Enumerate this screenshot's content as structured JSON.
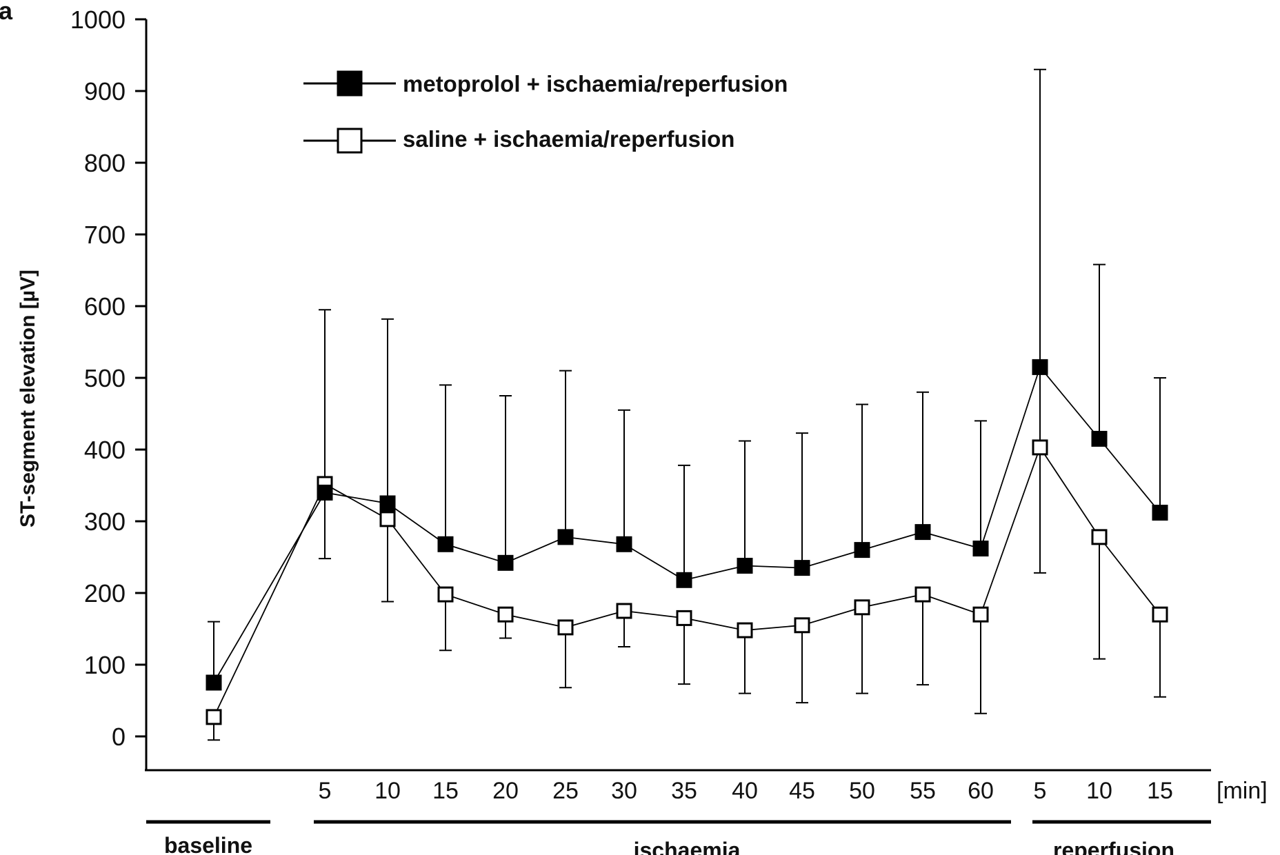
{
  "panel_label": "a",
  "chart_data": {
    "type": "line",
    "ylabel": "ST-segment elevation [µV]",
    "ylim": [
      0,
      1000
    ],
    "yticks": [
      0,
      100,
      200,
      300,
      400,
      500,
      600,
      700,
      800,
      900,
      1000
    ],
    "x_unit": "[min]",
    "x_tick_labels": [
      "5",
      "10",
      "15",
      "20",
      "25",
      "30",
      "35",
      "40",
      "45",
      "50",
      "55",
      "60",
      "5",
      "10",
      "15"
    ],
    "groups": [
      {
        "label": "baseline"
      },
      {
        "label": "ischaemia"
      },
      {
        "label": "reperfusion"
      }
    ],
    "categories": [
      "baseline",
      "ischaemia 5",
      "ischaemia 10",
      "ischaemia 15",
      "ischaemia 20",
      "ischaemia 25",
      "ischaemia 30",
      "ischaemia 35",
      "ischaemia 40",
      "ischaemia 45",
      "ischaemia 50",
      "ischaemia 55",
      "ischaemia 60",
      "reperfusion 5",
      "reperfusion 10",
      "reperfusion 15"
    ],
    "legend_position": "top-left",
    "series": [
      {
        "name": "metoprolol + ischaemia/reperfusion",
        "marker": "filled-square",
        "color": "#000000",
        "values": [
          75,
          340,
          325,
          268,
          242,
          278,
          268,
          218,
          238,
          235,
          260,
          285,
          262,
          515,
          415,
          312
        ],
        "error_upper": [
          160,
          595,
          582,
          490,
          475,
          510,
          455,
          378,
          412,
          423,
          463,
          480,
          440,
          930,
          658,
          500
        ],
        "error_lower": [
          null,
          248,
          188,
          null,
          null,
          null,
          null,
          null,
          null,
          null,
          null,
          null,
          null,
          228,
          null,
          null
        ]
      },
      {
        "name": "saline + ischaemia/reperfusion",
        "marker": "open-square",
        "color": "#000000",
        "values": [
          27,
          352,
          303,
          198,
          170,
          152,
          175,
          165,
          148,
          155,
          180,
          198,
          170,
          403,
          278,
          170
        ],
        "error_upper": [
          null,
          null,
          null,
          null,
          null,
          null,
          null,
          null,
          null,
          null,
          null,
          null,
          null,
          null,
          null,
          null
        ],
        "error_lower": [
          -5,
          null,
          null,
          120,
          137,
          68,
          125,
          73,
          60,
          47,
          60,
          72,
          32,
          null,
          108,
          55
        ]
      }
    ]
  }
}
